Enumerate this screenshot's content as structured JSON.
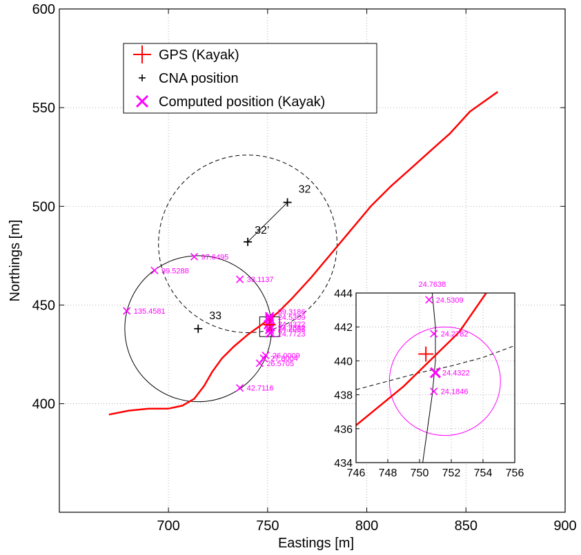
{
  "chart_data": {
    "type": "scatter",
    "xlabel": "Eastings [m]",
    "ylabel": "Northings [m]",
    "xlim": [
      645,
      900
    ],
    "ylim": [
      345,
      600
    ],
    "xticks": [
      "700",
      "750",
      "800",
      "850",
      "900"
    ],
    "yticks": [
      "400",
      "450",
      "500",
      "550",
      "600"
    ],
    "grid": true,
    "legend_placement": "top-left",
    "legend": [
      {
        "label": "GPS (Kayak)",
        "marker": "plus",
        "color": "#ff0000"
      },
      {
        "label": "CNA position",
        "marker": "plus",
        "color": "#000000"
      },
      {
        "label": "Computed position (Kayak)",
        "marker": "x",
        "color": "#ff00ff"
      }
    ],
    "gps_track": [
      [
        670,
        394.5
      ],
      [
        680,
        396.5
      ],
      [
        690,
        397.5
      ],
      [
        700,
        397.5
      ],
      [
        707,
        399
      ],
      [
        713,
        402.5
      ],
      [
        718,
        409
      ],
      [
        722,
        416
      ],
      [
        727,
        423
      ],
      [
        733,
        429
      ],
      [
        740,
        435
      ],
      [
        747,
        440
      ],
      [
        755,
        446
      ],
      [
        762,
        453
      ],
      [
        772,
        464
      ],
      [
        782,
        476
      ],
      [
        792,
        488
      ],
      [
        802,
        500
      ],
      [
        812,
        510
      ],
      [
        822,
        519
      ],
      [
        832,
        528
      ],
      [
        842,
        537
      ],
      [
        852,
        548
      ],
      [
        866,
        558
      ]
    ],
    "cna_positions": [
      {
        "label": "32",
        "x": 760,
        "y": 502
      },
      {
        "label": "32’",
        "x": 740,
        "y": 482
      },
      {
        "label": "33",
        "x": 715,
        "y": 438
      }
    ],
    "cna_link": {
      "from": "32",
      "to": "32’"
    },
    "circles": [
      {
        "cx": 740,
        "cy": 481,
        "r": 45,
        "style": "dashed"
      },
      {
        "cx": 715,
        "cy": 438,
        "r": 37,
        "style": "solid"
      }
    ],
    "computed_positions": [
      {
        "label": "97.6495",
        "x": 713,
        "y": 474.5
      },
      {
        "label": "99.5288",
        "x": 693,
        "y": 467.5
      },
      {
        "label": "33.1137",
        "x": 736,
        "y": 463
      },
      {
        "label": "135.4581",
        "x": 679,
        "y": 447
      },
      {
        "label": "26.0009",
        "x": 749,
        "y": 424.5
      },
      {
        "label": "27.8004",
        "x": 748,
        "y": 423
      },
      {
        "label": "26.5705",
        "x": 746,
        "y": 420.5
      },
      {
        "label": "42.7116",
        "x": 736,
        "y": 408
      }
    ],
    "cluster": {
      "x": 751,
      "y": 440
    },
    "cluster_labels": [
      "39.3186",
      "24.5309",
      "24.4322",
      "24.2382",
      "24.2088",
      "24.7723"
    ],
    "zoom_box": {
      "x": [
        746,
        756
      ],
      "y": [
        434,
        444
      ]
    },
    "inset": {
      "xlim": [
        746,
        756
      ],
      "ylim": [
        434,
        444
      ],
      "xticks": [
        "746",
        "748",
        "750",
        "752",
        "754",
        "756"
      ],
      "yticks": [
        "434",
        "436",
        "438",
        "440",
        "442",
        "444"
      ],
      "gps_line": [
        [
          746,
          436.2
        ],
        [
          749,
          438.5
        ],
        [
          752.5,
          441.7
        ],
        [
          754.2,
          444
        ]
      ],
      "gps_point": {
        "x": 750.4,
        "y": 440.4
      },
      "cna_curve_solid": [
        [
          750.2,
          434
        ],
        [
          750.5,
          436
        ],
        [
          750.8,
          438
        ],
        [
          751,
          440
        ],
        [
          751,
          442
        ],
        [
          750.8,
          444
        ]
      ],
      "cna_curve_dashed": [
        [
          746,
          438.3
        ],
        [
          748,
          438.8
        ],
        [
          750,
          439.3
        ],
        [
          752,
          439.7
        ],
        [
          754,
          440.2
        ],
        [
          756,
          440.9
        ]
      ],
      "ellipse": {
        "cx": 751.6,
        "cy": 438.8,
        "rx": 3.5,
        "ry": 3.2,
        "color": "#ff00ff"
      },
      "computed_positions": [
        {
          "label": "24.5309",
          "x": 750.6,
          "y": 443.6
        },
        {
          "label": "24.2782",
          "x": 750.9,
          "y": 441.6
        },
        {
          "label": "24.4322",
          "x": 751,
          "y": 439.3
        },
        {
          "label": "24.1846",
          "x": 750.9,
          "y": 438.2
        }
      ],
      "top_label": "24.7638"
    }
  }
}
